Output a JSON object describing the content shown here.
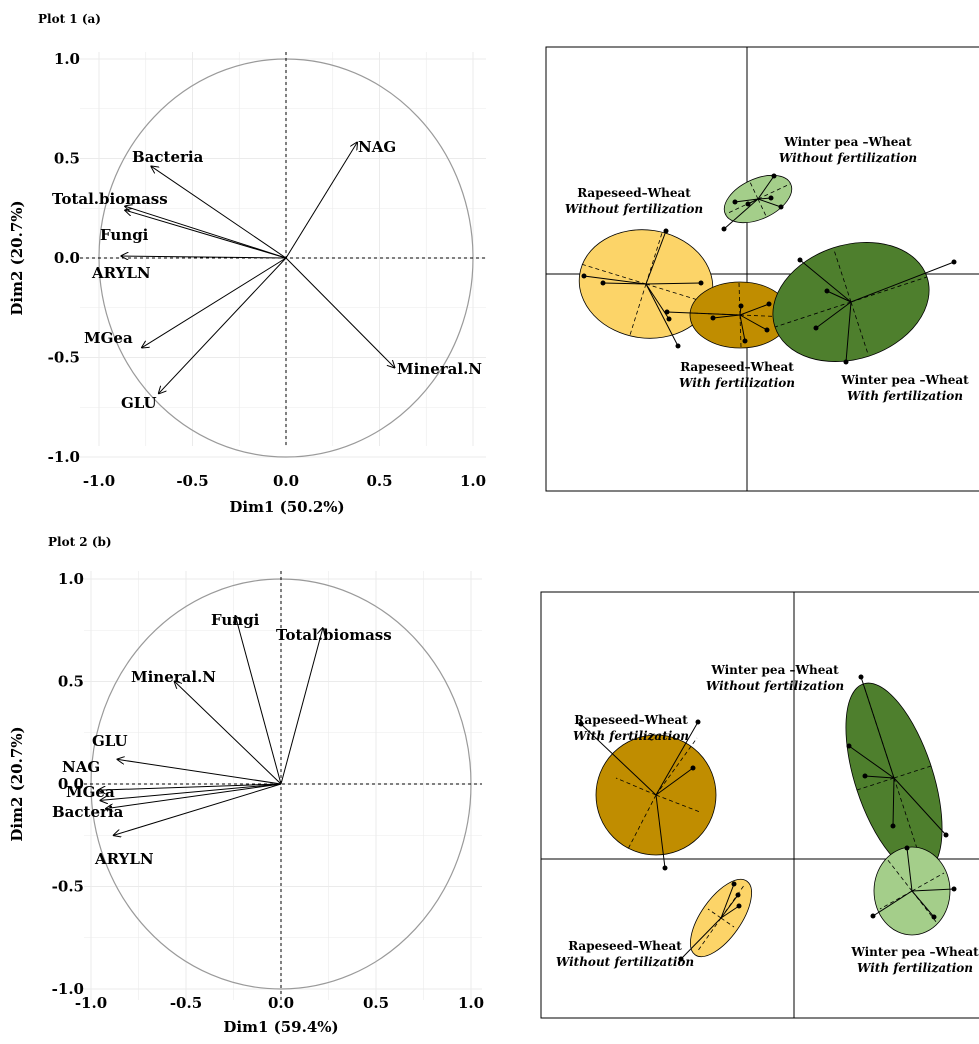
{
  "chart_data": [
    {
      "type": "scatter",
      "subtype": "pca-correlation-circle",
      "title": "Plot 1 (a)",
      "xlabel": "Dim1 (50.2%)",
      "ylabel": "Dim2 (20.7%)",
      "xlim": [
        -1.05,
        1.05
      ],
      "ylim": [
        -1.05,
        1.05
      ],
      "xticks": [
        "-1.0",
        "-0.5",
        "0.0",
        "0.5",
        "1.0"
      ],
      "yticks": [
        "-1.0",
        "-0.5",
        "0.0",
        "0.5",
        "1.0"
      ],
      "grid": true,
      "variables": [
        {
          "name": "NAG",
          "x": 0.38,
          "y": 0.58
        },
        {
          "name": "Bacteria",
          "x": -0.72,
          "y": 0.46
        },
        {
          "name": "Total.biomass",
          "x": -0.86,
          "y": 0.26
        },
        {
          "name": "Fungi",
          "x": -0.86,
          "y": 0.24
        },
        {
          "name": "ARYLN",
          "x": -0.88,
          "y": 0.01
        },
        {
          "name": "MGea",
          "x": -0.77,
          "y": -0.45
        },
        {
          "name": "GLU",
          "x": -0.68,
          "y": -0.68
        },
        {
          "name": "Mineral.N",
          "x": 0.58,
          "y": -0.55
        }
      ]
    },
    {
      "type": "scatter",
      "subtype": "pca-individuals-ellipses",
      "groups": [
        {
          "name": "Rapeseed–Wheat",
          "treatment": "Without fertilization",
          "color": "#fcd468"
        },
        {
          "name": "Rapeseed–Wheat",
          "treatment": "With fertilization",
          "color": "#c08d00"
        },
        {
          "name": "Winter pea –Wheat",
          "treatment": "Without fertilization",
          "color": "#a4ce8a"
        },
        {
          "name": "Winter pea –Wheat",
          "treatment": "With fertilization",
          "color": "#4e7f2d"
        }
      ]
    },
    {
      "type": "scatter",
      "subtype": "pca-correlation-circle",
      "title": "Plot 2 (b)",
      "xlabel": "Dim1 (59.4%)",
      "ylabel": "Dim2 (20.7%)",
      "xlim": [
        -1.05,
        1.05
      ],
      "ylim": [
        -1.05,
        1.05
      ],
      "xticks": [
        "-1.0",
        "-0.5",
        "0.0",
        "0.5",
        "1.0"
      ],
      "yticks": [
        "-1.0",
        "-0.5",
        "0.0",
        "0.5",
        "1.0"
      ],
      "grid": true,
      "variables": [
        {
          "name": "Fungi",
          "x": -0.24,
          "y": 0.82
        },
        {
          "name": "Total.biomass",
          "x": 0.22,
          "y": 0.76
        },
        {
          "name": "Mineral.N",
          "x": -0.56,
          "y": 0.5
        },
        {
          "name": "GLU",
          "x": -0.86,
          "y": 0.12
        },
        {
          "name": "NAG",
          "x": -0.96,
          "y": -0.03
        },
        {
          "name": "MGea",
          "x": -0.95,
          "y": -0.08
        },
        {
          "name": "Bacteria",
          "x": -0.92,
          "y": -0.12
        },
        {
          "name": "ARYLN",
          "x": -0.88,
          "y": -0.25
        }
      ]
    },
    {
      "type": "scatter",
      "subtype": "pca-individuals-ellipses",
      "groups": [
        {
          "name": "Rapeseed–Wheat",
          "treatment": "With fertilization",
          "color": "#c08d00"
        },
        {
          "name": "Rapeseed–Wheat",
          "treatment": "Without fertilization",
          "color": "#fcd468"
        },
        {
          "name": "Winter pea –Wheat",
          "treatment": "Without fertilization",
          "color": "#4e7f2d"
        },
        {
          "name": "Winter pea –Wheat",
          "treatment": "With fertilization",
          "color": "#a4ce8a"
        }
      ]
    }
  ]
}
